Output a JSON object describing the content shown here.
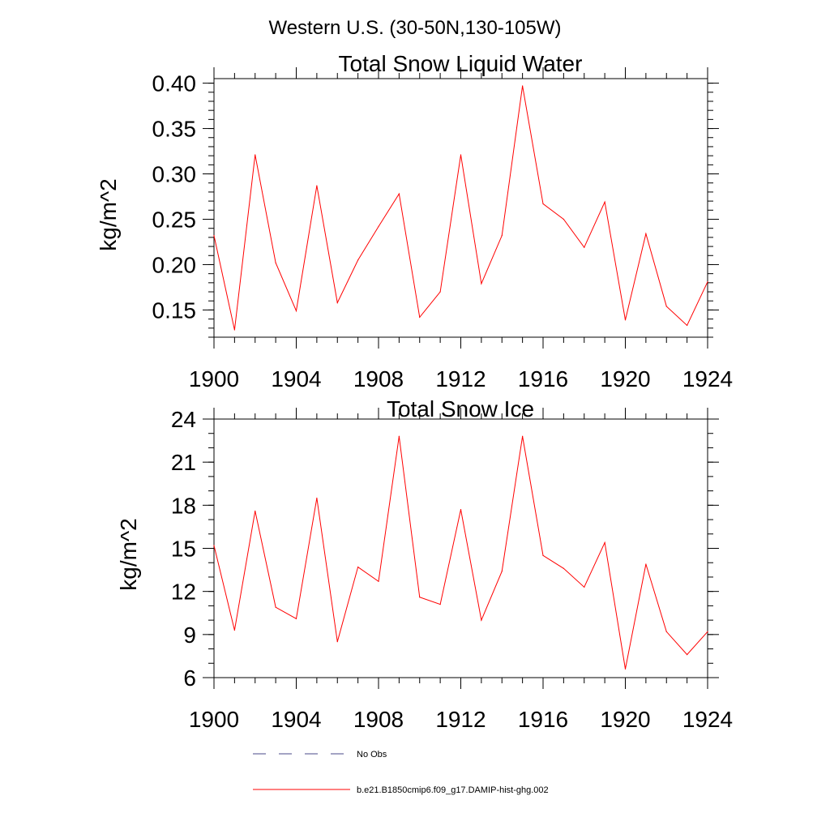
{
  "figure": {
    "title": "Western U.S. (30-50N,130-105W)"
  },
  "chart_data": [
    {
      "type": "line",
      "title": "Total Snow Liquid Water",
      "ylabel": "kg/m^2",
      "xlabel": "",
      "xlim": [
        1900,
        1924
      ],
      "ylim": [
        0.12,
        0.405
      ],
      "x_ticks": [
        "1900",
        "1904",
        "1908",
        "1912",
        "1916",
        "1920",
        "1924"
      ],
      "y_ticks": [
        "0.15",
        "0.20",
        "0.25",
        "0.30",
        "0.35",
        "0.40"
      ],
      "x": [
        1900,
        1901,
        1902,
        1903,
        1904,
        1905,
        1906,
        1907,
        1908,
        1909,
        1910,
        1911,
        1912,
        1913,
        1914,
        1915,
        1916,
        1917,
        1918,
        1919,
        1920,
        1921,
        1922,
        1923,
        1924
      ],
      "series": [
        {
          "name": "b.e21.B1850cmip6.f09_g17.DAMIP-hist-ghg.002",
          "color": "#ff0000",
          "values": [
            0.232,
            0.128,
            0.321,
            0.202,
            0.149,
            0.287,
            0.158,
            0.205,
            0.242,
            0.278,
            0.142,
            0.17,
            0.321,
            0.179,
            0.232,
            0.397,
            0.267,
            0.25,
            0.219,
            0.269,
            0.139,
            0.234,
            0.154,
            0.133,
            0.181
          ]
        }
      ],
      "grid": false
    },
    {
      "type": "line",
      "title": "Total Snow Ice",
      "ylabel": "kg/m^2",
      "xlabel": "",
      "xlim": [
        1900,
        1924
      ],
      "ylim": [
        6,
        24
      ],
      "x_ticks": [
        "1900",
        "1904",
        "1908",
        "1912",
        "1916",
        "1920",
        "1924"
      ],
      "y_ticks": [
        "6",
        "9",
        "12",
        "15",
        "18",
        "21",
        "24"
      ],
      "x": [
        1900,
        1901,
        1902,
        1903,
        1904,
        1905,
        1906,
        1907,
        1908,
        1909,
        1910,
        1911,
        1912,
        1913,
        1914,
        1915,
        1916,
        1917,
        1918,
        1919,
        1920,
        1921,
        1922,
        1923,
        1924
      ],
      "series": [
        {
          "name": "b.e21.B1850cmip6.f09_g17.DAMIP-hist-ghg.002",
          "color": "#ff0000",
          "values": [
            15.2,
            9.3,
            17.6,
            10.9,
            10.1,
            18.5,
            8.5,
            13.7,
            12.7,
            22.8,
            11.6,
            11.1,
            17.7,
            10.0,
            13.4,
            22.8,
            14.5,
            13.6,
            12.3,
            15.4,
            6.6,
            13.9,
            9.2,
            7.6,
            9.2
          ]
        }
      ],
      "grid": false
    }
  ],
  "legend": {
    "placement": "bottom",
    "entries": [
      {
        "label": "No Obs",
        "color": "#4a4a8a",
        "style": "dashed"
      },
      {
        "label": "b.e21.B1850cmip6.f09_g17.DAMIP-hist-ghg.002",
        "color": "#ff0000",
        "style": "solid"
      }
    ]
  }
}
